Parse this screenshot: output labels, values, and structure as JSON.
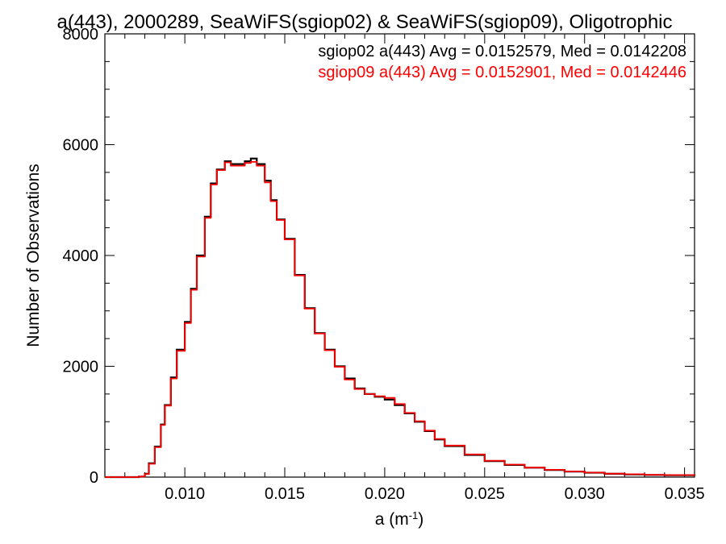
{
  "chart_data": {
    "type": "line",
    "title": "a(443), 2000289, SeaWiFS(sgiop02) & SeaWiFS(sgiop09), Oligotrophic",
    "xlabel": "a (m",
    "xlabel_sup": "-1",
    "xlabel_close": ")",
    "ylabel": "Number of Observations",
    "xlim": [
      0.006,
      0.0355
    ],
    "ylim": [
      0,
      8000
    ],
    "grid": false,
    "legend_position": "top-right",
    "x_ticks": [
      {
        "value": 0.01,
        "label": "0.010"
      },
      {
        "value": 0.015,
        "label": "0.015"
      },
      {
        "value": 0.02,
        "label": "0.020"
      },
      {
        "value": 0.025,
        "label": "0.025"
      },
      {
        "value": 0.03,
        "label": "0.030"
      },
      {
        "value": 0.035,
        "label": "0.035"
      }
    ],
    "y_ticks": [
      {
        "value": 0,
        "label": "0"
      },
      {
        "value": 2000,
        "label": "2000"
      },
      {
        "value": 4000,
        "label": "4000"
      },
      {
        "value": 6000,
        "label": "6000"
      },
      {
        "value": 8000,
        "label": "8000"
      }
    ],
    "x": [
      0.006,
      0.007,
      0.0074,
      0.0077,
      0.008,
      0.0082,
      0.0085,
      0.0088,
      0.009,
      0.0093,
      0.0096,
      0.01,
      0.0103,
      0.0106,
      0.011,
      0.0113,
      0.0116,
      0.012,
      0.0123,
      0.0126,
      0.013,
      0.0133,
      0.0136,
      0.014,
      0.0143,
      0.0146,
      0.015,
      0.0155,
      0.016,
      0.0165,
      0.017,
      0.0175,
      0.018,
      0.0185,
      0.019,
      0.0195,
      0.02,
      0.0205,
      0.021,
      0.0215,
      0.022,
      0.0225,
      0.023,
      0.024,
      0.025,
      0.026,
      0.027,
      0.028,
      0.029,
      0.03,
      0.031,
      0.032,
      0.033,
      0.034,
      0.0355
    ],
    "series": [
      {
        "name": "sgiop02 a(443) Avg = 0.0152579, Med = 0.0142208",
        "color": "#000000",
        "values": [
          0,
          0,
          0,
          10,
          60,
          250,
          550,
          950,
          1300,
          1800,
          2300,
          2800,
          3400,
          4000,
          4700,
          5300,
          5550,
          5700,
          5650,
          5650,
          5700,
          5750,
          5650,
          5350,
          5000,
          4650,
          4300,
          3650,
          3050,
          2600,
          2300,
          2000,
          1780,
          1600,
          1500,
          1450,
          1400,
          1300,
          1150,
          1000,
          830,
          680,
          560,
          400,
          290,
          220,
          170,
          130,
          100,
          80,
          60,
          50,
          40,
          35,
          25
        ]
      },
      {
        "name": "sgiop09 a(443) Avg = 0.0152901, Med = 0.0142446",
        "color": "#ff0000",
        "values": [
          0,
          0,
          0,
          10,
          55,
          240,
          540,
          940,
          1290,
          1780,
          2280,
          2780,
          3380,
          3980,
          4680,
          5280,
          5540,
          5680,
          5620,
          5620,
          5670,
          5690,
          5620,
          5320,
          4980,
          4640,
          4290,
          3640,
          3040,
          2590,
          2290,
          1990,
          1760,
          1590,
          1500,
          1460,
          1430,
          1320,
          1160,
          1010,
          840,
          690,
          570,
          410,
          295,
          225,
          172,
          132,
          102,
          82,
          62,
          52,
          42,
          36,
          26
        ]
      }
    ]
  }
}
